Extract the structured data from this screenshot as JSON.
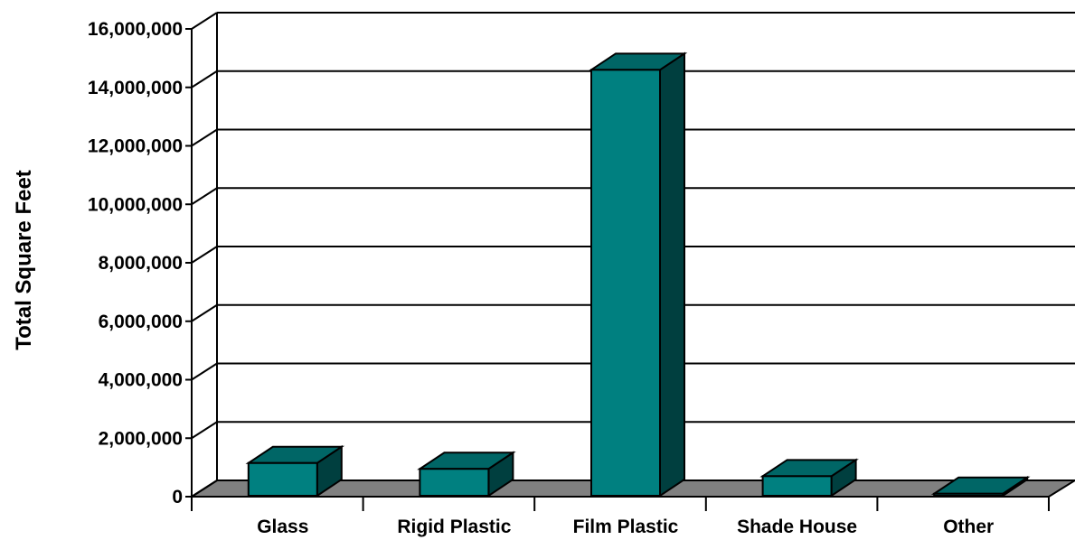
{
  "chart_data": {
    "type": "bar",
    "title": "",
    "xlabel": "",
    "ylabel": "Total Square Feet",
    "categories": [
      "Glass",
      "Rigid Plastic",
      "Film Plastic",
      "Shade House",
      "Other"
    ],
    "values": [
      1150000,
      950000,
      14600000,
      700000,
      100000
    ],
    "ylim": [
      0,
      16000000
    ],
    "yticks": [
      0,
      2000000,
      4000000,
      6000000,
      8000000,
      10000000,
      12000000,
      14000000,
      16000000
    ],
    "ytick_labels": [
      "0",
      "2,000,000",
      "4,000,000",
      "6,000,000",
      "8,000,000",
      "10,000,000",
      "12,000,000",
      "14,000,000",
      "16,000,000"
    ],
    "grid": true,
    "style": "3d",
    "colors": {
      "bar_front": "#008080",
      "bar_top": "#006666",
      "bar_side": "#003f3f",
      "floor": "#808080",
      "gridline": "#000000"
    }
  }
}
